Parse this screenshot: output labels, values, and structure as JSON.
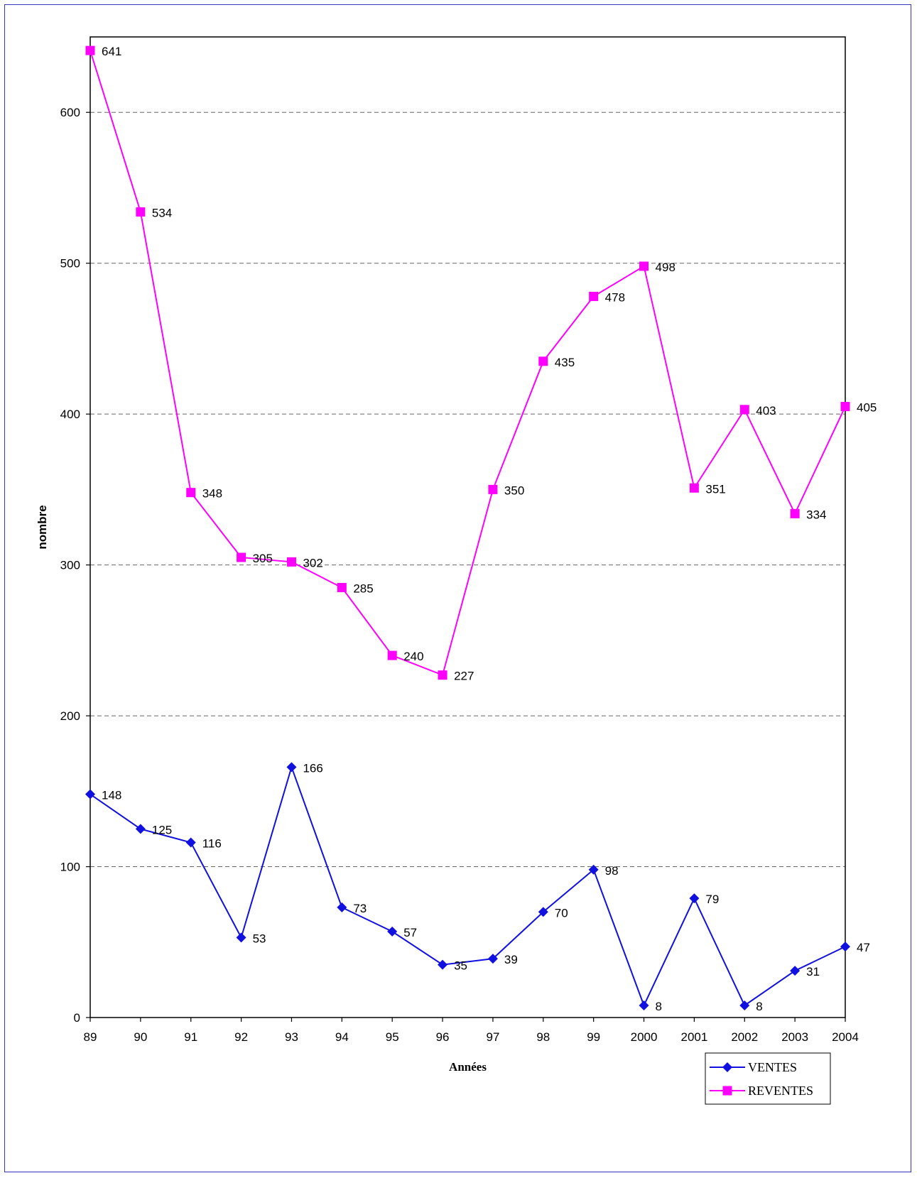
{
  "chart_data": {
    "type": "line",
    "xlabel": "Années",
    "ylabel": "nombre",
    "ylim": [
      0,
      650
    ],
    "yticks": [
      0,
      100,
      200,
      300,
      400,
      500,
      600
    ],
    "grid": "horizontal dashed",
    "legend": "bottom-right",
    "categories": [
      "89",
      "90",
      "91",
      "92",
      "93",
      "94",
      "95",
      "96",
      "97",
      "98",
      "99",
      "2000",
      "2001",
      "2002",
      "2003",
      "2004"
    ],
    "series": [
      {
        "name": "VENTES",
        "color": "#1010e0",
        "marker": "diamond",
        "values": [
          148,
          125,
          116,
          53,
          166,
          73,
          57,
          35,
          39,
          70,
          98,
          8,
          79,
          8,
          31,
          47
        ]
      },
      {
        "name": "REVENTES",
        "color": "#ff00ff",
        "marker": "square",
        "values": [
          641,
          534,
          348,
          305,
          302,
          285,
          240,
          227,
          350,
          435,
          478,
          498,
          351,
          403,
          334,
          405
        ]
      }
    ]
  }
}
